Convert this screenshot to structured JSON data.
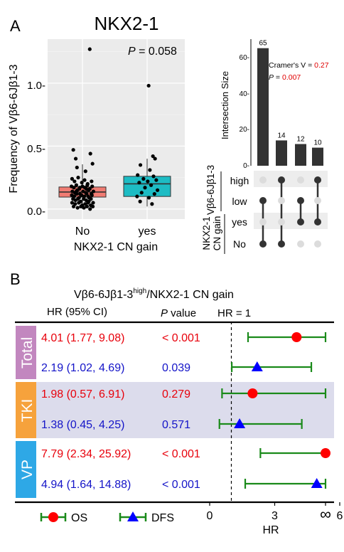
{
  "panel_a": {
    "label": "A",
    "title": "NKX2-1",
    "boxplot": {
      "type": "box",
      "ylabel": "Frequency of Vβ6-6Jβ1-3",
      "xlabel": "NKX2-1 CN gain",
      "categories": [
        "No",
        "yes"
      ],
      "y_ticks": [
        "0.0-",
        "0.5-",
        "1.0-"
      ],
      "ylim": [
        -0.08,
        1.35
      ],
      "p_label": "P",
      "p_text": " = 0.058",
      "colors": {
        "No": "#f07b72",
        "yes": "#1dbcc4"
      },
      "boxes": [
        {
          "category": "No",
          "q1": 0.095,
          "median": 0.135,
          "q3": 0.175,
          "whisker_low": 0.0,
          "whisker_high": 0.355
        },
        {
          "category": "yes",
          "q1": 0.1,
          "median": 0.2,
          "q3": 0.26,
          "whisker_low": 0.02,
          "whisker_high": 0.4
        }
      ],
      "points_no": [
        [
          -0.3,
          0.47
        ],
        [
          -0.22,
          0.4
        ],
        [
          0.26,
          0.44
        ],
        [
          0.33,
          0.36
        ],
        [
          -0.18,
          0.33
        ],
        [
          0.1,
          0.3
        ],
        [
          0.24,
          1.27
        ],
        [
          -0.34,
          0.24
        ],
        [
          -0.26,
          0.22
        ],
        [
          -0.14,
          0.25
        ],
        [
          -0.02,
          0.21
        ],
        [
          0.07,
          0.23
        ],
        [
          0.17,
          0.2
        ],
        [
          0.3,
          0.22
        ],
        [
          -0.36,
          0.18
        ],
        [
          -0.28,
          0.17
        ],
        [
          -0.2,
          0.19
        ],
        [
          -0.1,
          0.16
        ],
        [
          0.0,
          0.18
        ],
        [
          0.08,
          0.17
        ],
        [
          0.16,
          0.19
        ],
        [
          0.24,
          0.16
        ],
        [
          0.32,
          0.18
        ],
        [
          -0.33,
          0.14
        ],
        [
          -0.25,
          0.13
        ],
        [
          -0.17,
          0.15
        ],
        [
          -0.08,
          0.12
        ],
        [
          0.02,
          0.14
        ],
        [
          0.11,
          0.13
        ],
        [
          0.2,
          0.15
        ],
        [
          0.29,
          0.12
        ],
        [
          0.36,
          0.14
        ],
        [
          -0.35,
          0.11
        ],
        [
          -0.27,
          0.1
        ],
        [
          -0.19,
          0.12
        ],
        [
          -0.11,
          0.09
        ],
        [
          -0.03,
          0.11
        ],
        [
          0.06,
          0.1
        ],
        [
          0.14,
          0.12
        ],
        [
          0.22,
          0.09
        ],
        [
          0.31,
          0.11
        ],
        [
          -0.31,
          0.08
        ],
        [
          -0.23,
          0.07
        ],
        [
          -0.15,
          0.08
        ],
        [
          -0.06,
          0.06
        ],
        [
          0.04,
          0.08
        ],
        [
          0.12,
          0.07
        ],
        [
          0.21,
          0.06
        ],
        [
          0.28,
          0.08
        ],
        [
          -0.34,
          0.05
        ],
        [
          -0.24,
          0.04
        ],
        [
          -0.12,
          0.05
        ],
        [
          -0.01,
          0.03
        ],
        [
          0.09,
          0.04
        ],
        [
          0.18,
          0.05
        ],
        [
          0.27,
          0.03
        ],
        [
          0.35,
          0.05
        ],
        [
          -0.29,
          0.02
        ],
        [
          -0.16,
          0.01
        ],
        [
          -0.05,
          0.02
        ],
        [
          0.05,
          0.01
        ],
        [
          0.15,
          0.02
        ],
        [
          0.25,
          0.0
        ],
        [
          0.34,
          0.02
        ],
        [
          -0.2,
          0.14
        ],
        [
          0.19,
          0.1
        ],
        [
          -0.09,
          0.17
        ],
        [
          0.13,
          0.16
        ]
      ],
      "points_yes": [
        [
          0.05,
          0.98
        ],
        [
          0.19,
          0.42
        ],
        [
          0.26,
          0.4
        ],
        [
          -0.22,
          0.35
        ],
        [
          0.09,
          0.31
        ],
        [
          -0.31,
          0.27
        ],
        [
          0.21,
          0.26
        ],
        [
          -0.12,
          0.24
        ],
        [
          0.3,
          0.23
        ],
        [
          -0.26,
          0.21
        ],
        [
          0.02,
          0.22
        ],
        [
          0.13,
          0.19
        ],
        [
          -0.07,
          0.17
        ],
        [
          0.34,
          0.15
        ],
        [
          -0.18,
          0.13
        ],
        [
          0.24,
          0.12
        ],
        [
          -0.33,
          0.1
        ],
        [
          0.06,
          0.09
        ],
        [
          -0.23,
          0.06
        ],
        [
          0.16,
          0.04
        ]
      ]
    },
    "upset": {
      "ylabel": "Intersection Size",
      "y_ticks": [
        "0-",
        "20-",
        "40-",
        "60-"
      ],
      "ylim": [
        0,
        70
      ],
      "bars": [
        {
          "value": 65,
          "label": "65"
        },
        {
          "value": 14,
          "label": "14"
        },
        {
          "value": 12,
          "label": "12"
        },
        {
          "value": 10,
          "label": "10"
        }
      ],
      "cramer_label": "Cramer's V = ",
      "cramer_value": "0.27",
      "p_label": "P",
      "p_eq": " = ",
      "p_value": "0.007",
      "group1_label": "Vβ6-6Jβ1-3",
      "group2_label": "NKX2-1",
      "group2_label_2": "CN gain",
      "rows": [
        "high",
        "low",
        "yes",
        "No"
      ],
      "matrix": [
        [
          false,
          true,
          false,
          true
        ],
        [
          true,
          false,
          true,
          false
        ],
        [
          false,
          false,
          true,
          true
        ],
        [
          true,
          true,
          false,
          false
        ]
      ]
    }
  },
  "panel_b": {
    "label": "B",
    "title": "Vβ6-6Jβ1-3",
    "title_sup": "high",
    "title_rest": "/NKX2-1 CN gain",
    "col_hr": "HR (95% CI)",
    "col_p": "P",
    "col_p_rest": " value",
    "col_ref": "HR = 1",
    "xlabel": "HR",
    "x_ticks": [
      "0",
      "3",
      "6",
      "∞"
    ],
    "legend": [
      {
        "name": "OS",
        "marker": "circle",
        "color": "#ff0000"
      },
      {
        "name": "DFS",
        "marker": "triangle",
        "color": "#0000ff"
      }
    ],
    "colors": {
      "os": "#e8000b",
      "dfs": "#1414c8",
      "ci_line": "#1a8a1a",
      "total": "#c287bf",
      "tki": "#f6a23c",
      "vp": "#2ea8e6",
      "band": "#dcdcec"
    },
    "groups": [
      {
        "name": "Total",
        "rows": [
          {
            "endpoint": "OS",
            "hr_text": "4.01 (1.77, 9.08)",
            "p_text": "< 0.001",
            "hr": 4.01,
            "low": 1.77,
            "high": 9.08
          },
          {
            "endpoint": "DFS",
            "hr_text": "2.19 (1.02, 4.69)",
            "p_text": "0.039",
            "hr": 2.19,
            "low": 1.02,
            "high": 4.69
          }
        ]
      },
      {
        "name": "TKI",
        "rows": [
          {
            "endpoint": "OS",
            "hr_text": "1.98 (0.57, 6.91)",
            "p_text": "0.279",
            "hr": 1.98,
            "low": 0.57,
            "high": 6.91
          },
          {
            "endpoint": "DFS",
            "hr_text": "1.38 (0.45, 4.25)",
            "p_text": "0.571",
            "hr": 1.38,
            "low": 0.45,
            "high": 4.25
          }
        ]
      },
      {
        "name": "VP",
        "rows": [
          {
            "endpoint": "OS",
            "hr_text": "7.79 (2.34, 25.92)",
            "p_text": "< 0.001",
            "hr": 7.79,
            "low": 2.34,
            "high": 25.92
          },
          {
            "endpoint": "DFS",
            "hr_text": "4.94 (1.64, 14.88)",
            "p_text": "< 0.001",
            "hr": 4.94,
            "low": 1.64,
            "high": 14.88
          }
        ]
      }
    ]
  }
}
